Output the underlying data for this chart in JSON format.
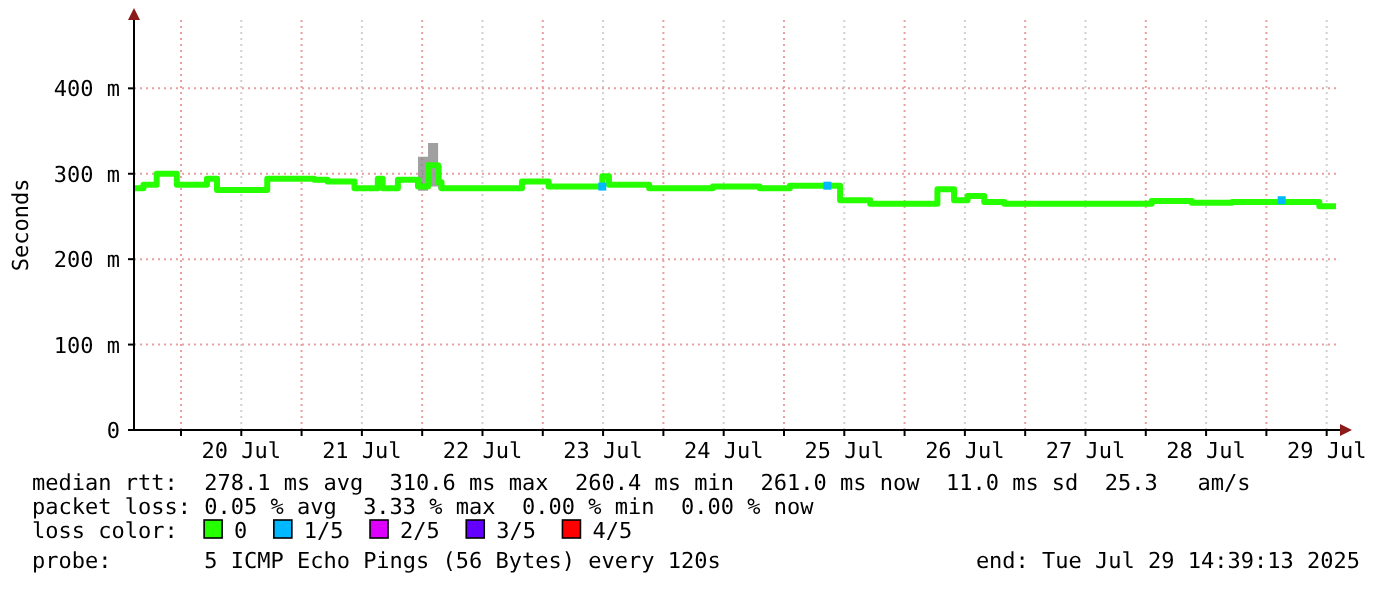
{
  "chart_data": {
    "type": "step",
    "ylabel": "Seconds",
    "legend_title": "loss color:",
    "legend": "bottom",
    "grid": true,
    "xlim": [
      "2025-07-19T14:39",
      "2025-07-29T14:39"
    ],
    "xticks": [
      {
        "value": "2025-07-20T00:00",
        "label": null
      },
      {
        "value": "2025-07-20T12:00",
        "label": "20 Jul"
      },
      {
        "value": "2025-07-21T00:00",
        "label": null
      },
      {
        "value": "2025-07-21T12:00",
        "label": "21 Jul"
      },
      {
        "value": "2025-07-22T00:00",
        "label": null
      },
      {
        "value": "2025-07-22T12:00",
        "label": "22 Jul"
      },
      {
        "value": "2025-07-23T00:00",
        "label": null
      },
      {
        "value": "2025-07-23T12:00",
        "label": "23 Jul"
      },
      {
        "value": "2025-07-24T00:00",
        "label": null
      },
      {
        "value": "2025-07-24T12:00",
        "label": "24 Jul"
      },
      {
        "value": "2025-07-25T00:00",
        "label": null
      },
      {
        "value": "2025-07-25T12:00",
        "label": "25 Jul"
      },
      {
        "value": "2025-07-26T00:00",
        "label": null
      },
      {
        "value": "2025-07-26T12:00",
        "label": "26 Jul"
      },
      {
        "value": "2025-07-27T00:00",
        "label": null
      },
      {
        "value": "2025-07-27T12:00",
        "label": "27 Jul"
      },
      {
        "value": "2025-07-28T00:00",
        "label": null
      },
      {
        "value": "2025-07-28T12:00",
        "label": "28 Jul"
      },
      {
        "value": "2025-07-29T00:00",
        "label": null
      },
      {
        "value": "2025-07-29T12:00",
        "label": "29 Jul"
      }
    ],
    "ylim": [
      0,
      480
    ],
    "yticks": [
      0,
      {
        "value": 100,
        "label": "100 m"
      },
      {
        "value": 200,
        "label": "200 m"
      },
      {
        "value": 300,
        "label": "300 m"
      },
      {
        "value": 400,
        "label": "400 m"
      }
    ],
    "series": [
      {
        "name": "0",
        "color": "#26ff00",
        "x": [
          "2025-07-19T14:40",
          "2025-07-19T16:32",
          "2025-07-19T19:10",
          "2025-07-19T23:10",
          "2025-07-20T05:10",
          "2025-07-20T07:10",
          "2025-07-20T17:10",
          "2025-07-21T02:32",
          "2025-07-21T05:10",
          "2025-07-21T10:32",
          "2025-07-21T15:10",
          "2025-07-21T16:08",
          "2025-07-21T19:10",
          "2025-07-21T23:10",
          "2025-07-22T01:10",
          "2025-07-22T03:10",
          "2025-07-22T03:51",
          "2025-07-22T19:51",
          "2025-07-23T01:10",
          "2025-07-23T11:51",
          "2025-07-23T13:10",
          "2025-07-23T21:10",
          "2025-07-24T09:51",
          "2025-07-24T19:10",
          "2025-07-25T01:10",
          "2025-07-25T11:10",
          "2025-07-25T17:10",
          "2025-07-26T06:32",
          "2025-07-26T09:51",
          "2025-07-26T12:32",
          "2025-07-26T15:51",
          "2025-07-26T19:51",
          "2025-07-28T01:10",
          "2025-07-28T09:10",
          "2025-07-28T17:10",
          "2025-07-29T10:32",
          "2025-07-29T13:51"
        ],
        "values": [
          283,
          287,
          300,
          287,
          294,
          281,
          294,
          293,
          291,
          283,
          294,
          283,
          293,
          285,
          310,
          290,
          283,
          291,
          285,
          297,
          287,
          283,
          285,
          283,
          286,
          269,
          265,
          282,
          269,
          274,
          267,
          265,
          268,
          266,
          267,
          262,
          262
        ],
        "lower": [
          283,
          287,
          300,
          287,
          294,
          281,
          294,
          293,
          291,
          283,
          294,
          283,
          293,
          280,
          285,
          282,
          283,
          291,
          285,
          297,
          287,
          283,
          285,
          283,
          286,
          269,
          265,
          282,
          269,
          274,
          267,
          265,
          268,
          266,
          267,
          262,
          262
        ],
        "upper": [
          283,
          287,
          300,
          287,
          294,
          281,
          294,
          293,
          291,
          283,
          294,
          283,
          293,
          320,
          336,
          310,
          283,
          291,
          285,
          297,
          287,
          283,
          285,
          283,
          286,
          269,
          265,
          282,
          269,
          274,
          267,
          265,
          268,
          266,
          267,
          262,
          262
        ]
      },
      {
        "name": "1/5",
        "color": "#00b8ff",
        "type": "scatter",
        "marker": "square",
        "x": [
          "2025-07-23T11:51",
          "2025-07-25T08:39",
          "2025-07-29T03:03"
        ],
        "values": [
          285,
          286,
          269
        ]
      },
      {
        "name": "2/5",
        "color": "#dd00ff",
        "type": "scatter",
        "marker": "square"
      },
      {
        "name": "3/5",
        "color": "#6400ff",
        "type": "scatter",
        "marker": "square"
      },
      {
        "name": "4/5",
        "color": "#ff0000",
        "type": "scatter",
        "marker": "square"
      }
    ],
    "annotations": [
      "median rtt:  278.1 ms avg  310.6 ms max  260.4 ms min  261.0 ms now  11.0 ms sd  25.3   am/s",
      "packet loss: 0.05 % avg  3.33 % max  0.00 % min  0.00 % now",
      "probe:       5 ICMP Echo Pings (56 Bytes) every 120s",
      "end: Tue Jul 29 14:39:13 2025"
    ]
  }
}
